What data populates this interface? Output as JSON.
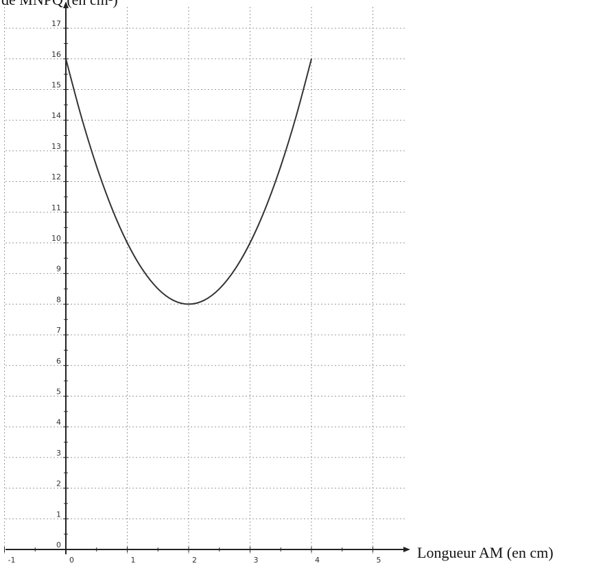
{
  "chart_data": {
    "type": "line",
    "title": "",
    "ylabel": "de MNPQ (en cm²)",
    "xlabel": "Longueur AM (en cm)",
    "xlim": [
      -1,
      5
    ],
    "ylim": [
      0,
      17
    ],
    "x_ticks": [
      "-1",
      "0",
      "1",
      "2",
      "3",
      "4",
      "5"
    ],
    "y_ticks": [
      "0",
      "1",
      "2",
      "3",
      "4",
      "5",
      "6",
      "7",
      "8",
      "9",
      "10",
      "11",
      "12",
      "13",
      "14",
      "15",
      "16",
      "17"
    ],
    "grid": true,
    "series": [
      {
        "x": [
          0,
          0.25,
          0.5,
          0.75,
          1,
          1.25,
          1.5,
          1.75,
          2,
          2.25,
          2.5,
          2.75,
          3,
          3.25,
          3.5,
          3.75,
          4
        ],
        "y": [
          16,
          14.125,
          12.5,
          11.125,
          10,
          9.125,
          8.5,
          8.125,
          8,
          8.125,
          8.5,
          9.125,
          10,
          11.125,
          12.5,
          14.125,
          16
        ]
      }
    ]
  }
}
